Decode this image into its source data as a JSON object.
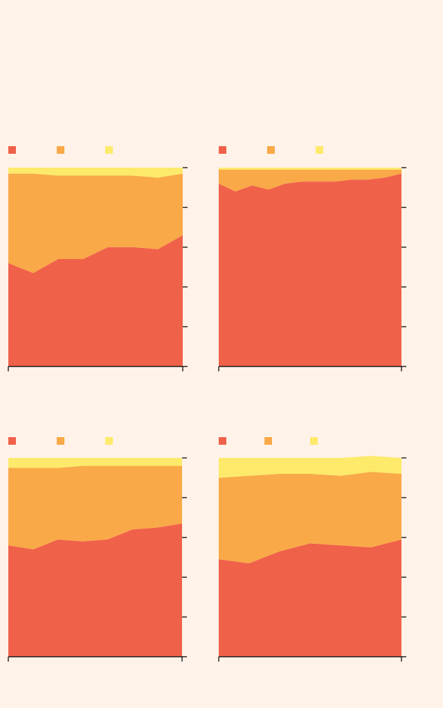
{
  "colors": {
    "background": "#fff2e8",
    "axis": "#1a1a1a"
  },
  "chart_data": [
    {
      "type": "area",
      "stacked": true,
      "title": "",
      "xlabel": "",
      "ylabel": "",
      "ylim": [
        0,
        1
      ],
      "y_ticks": [
        0,
        0.2,
        0.4,
        0.6,
        0.8,
        1
      ],
      "legend_position": "top-left",
      "x": [
        1,
        2,
        3,
        4,
        5,
        6,
        7,
        8
      ],
      "series": [
        {
          "name": "",
          "color": "#f0614a",
          "values": [
            0.52,
            0.47,
            0.54,
            0.54,
            0.6,
            0.6,
            0.59,
            0.66
          ]
        },
        {
          "name": "",
          "color": "#f9a947",
          "values": [
            0.45,
            0.5,
            0.42,
            0.42,
            0.36,
            0.36,
            0.36,
            0.31
          ]
        },
        {
          "name": "",
          "color": "#fdea6a",
          "values": [
            0.03,
            0.03,
            0.04,
            0.04,
            0.04,
            0.04,
            0.05,
            0.03
          ]
        }
      ]
    },
    {
      "type": "area",
      "stacked": true,
      "title": "",
      "xlabel": "",
      "ylabel": "",
      "ylim": [
        0,
        1
      ],
      "y_ticks": [
        0,
        0.2,
        0.4,
        0.6,
        0.8,
        1
      ],
      "legend_position": "top-left",
      "x": [
        1,
        2,
        3,
        4,
        5,
        6,
        7,
        8,
        9,
        10,
        11,
        12
      ],
      "series": [
        {
          "name": "",
          "color": "#f0614a",
          "values": [
            0.92,
            0.88,
            0.91,
            0.89,
            0.92,
            0.93,
            0.93,
            0.93,
            0.94,
            0.94,
            0.95,
            0.97
          ]
        },
        {
          "name": "",
          "color": "#f9a947",
          "values": [
            0.07,
            0.11,
            0.08,
            0.1,
            0.07,
            0.06,
            0.06,
            0.06,
            0.05,
            0.05,
            0.04,
            0.02
          ]
        },
        {
          "name": "",
          "color": "#fdea6a",
          "values": [
            0.01,
            0.01,
            0.01,
            0.01,
            0.01,
            0.01,
            0.01,
            0.01,
            0.01,
            0.01,
            0.01,
            0.01
          ]
        }
      ]
    },
    {
      "type": "area",
      "stacked": true,
      "title": "",
      "xlabel": "",
      "ylabel": "",
      "ylim": [
        0,
        1
      ],
      "y_ticks": [
        0,
        0.2,
        0.4,
        0.6,
        0.8,
        1
      ],
      "legend_position": "top-left",
      "x": [
        1,
        2,
        3,
        4,
        5,
        6,
        7,
        8
      ],
      "series": [
        {
          "name": "",
          "color": "#f0614a",
          "values": [
            0.56,
            0.54,
            0.59,
            0.58,
            0.59,
            0.64,
            0.65,
            0.67
          ]
        },
        {
          "name": "",
          "color": "#f9a947",
          "values": [
            0.39,
            0.41,
            0.36,
            0.38,
            0.37,
            0.32,
            0.31,
            0.29
          ]
        },
        {
          "name": "",
          "color": "#fdea6a",
          "values": [
            0.05,
            0.05,
            0.05,
            0.04,
            0.04,
            0.04,
            0.04,
            0.04
          ]
        }
      ]
    },
    {
      "type": "area",
      "stacked": true,
      "title": "",
      "xlabel": "",
      "ylabel": "",
      "ylim": [
        0,
        1
      ],
      "y_ticks": [
        0,
        0.2,
        0.4,
        0.6,
        0.8,
        1
      ],
      "legend_position": "top-left",
      "x": [
        1,
        2,
        3,
        4,
        5,
        6,
        7
      ],
      "series": [
        {
          "name": "",
          "color": "#f0614a",
          "values": [
            0.49,
            0.47,
            0.53,
            0.57,
            0.56,
            0.55,
            0.59
          ]
        },
        {
          "name": "",
          "color": "#f9a947",
          "values": [
            0.41,
            0.44,
            0.39,
            0.35,
            0.35,
            0.38,
            0.33
          ]
        },
        {
          "name": "",
          "color": "#fdea6a",
          "values": [
            0.1,
            0.09,
            0.08,
            0.08,
            0.09,
            0.08,
            0.08
          ]
        }
      ]
    }
  ]
}
